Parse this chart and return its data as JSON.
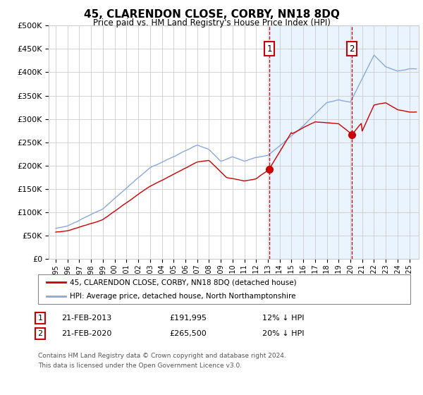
{
  "title": "45, CLARENDON CLOSE, CORBY, NN18 8DQ",
  "subtitle": "Price paid vs. HM Land Registry's House Price Index (HPI)",
  "legend_line1": "45, CLARENDON CLOSE, CORBY, NN18 8DQ (detached house)",
  "legend_line2": "HPI: Average price, detached house, North Northamptonshire",
  "annotation1_date": "21-FEB-2013",
  "annotation1_price": "£191,995",
  "annotation1_hpi": "12% ↓ HPI",
  "annotation2_date": "21-FEB-2020",
  "annotation2_price": "£265,500",
  "annotation2_hpi": "20% ↓ HPI",
  "footnote1": "Contains HM Land Registry data © Crown copyright and database right 2024.",
  "footnote2": "This data is licensed under the Open Government Licence v3.0.",
  "hpi_color": "#88aadd",
  "price_color": "#cc0000",
  "marker_color": "#cc0000",
  "bg_color": "#ddeeff",
  "vline_color": "#cc0000",
  "annot_box_color": "#cc0000",
  "grid_color": "#cccccc",
  "ylim": [
    0,
    500000
  ],
  "yticks": [
    0,
    50000,
    100000,
    150000,
    200000,
    250000,
    300000,
    350000,
    400000,
    450000,
    500000
  ],
  "sale1_year": 2013.12,
  "sale1_price": 191995,
  "sale2_year": 2020.12,
  "sale2_price": 265500,
  "xstart": 1994.4,
  "xend": 2025.8
}
